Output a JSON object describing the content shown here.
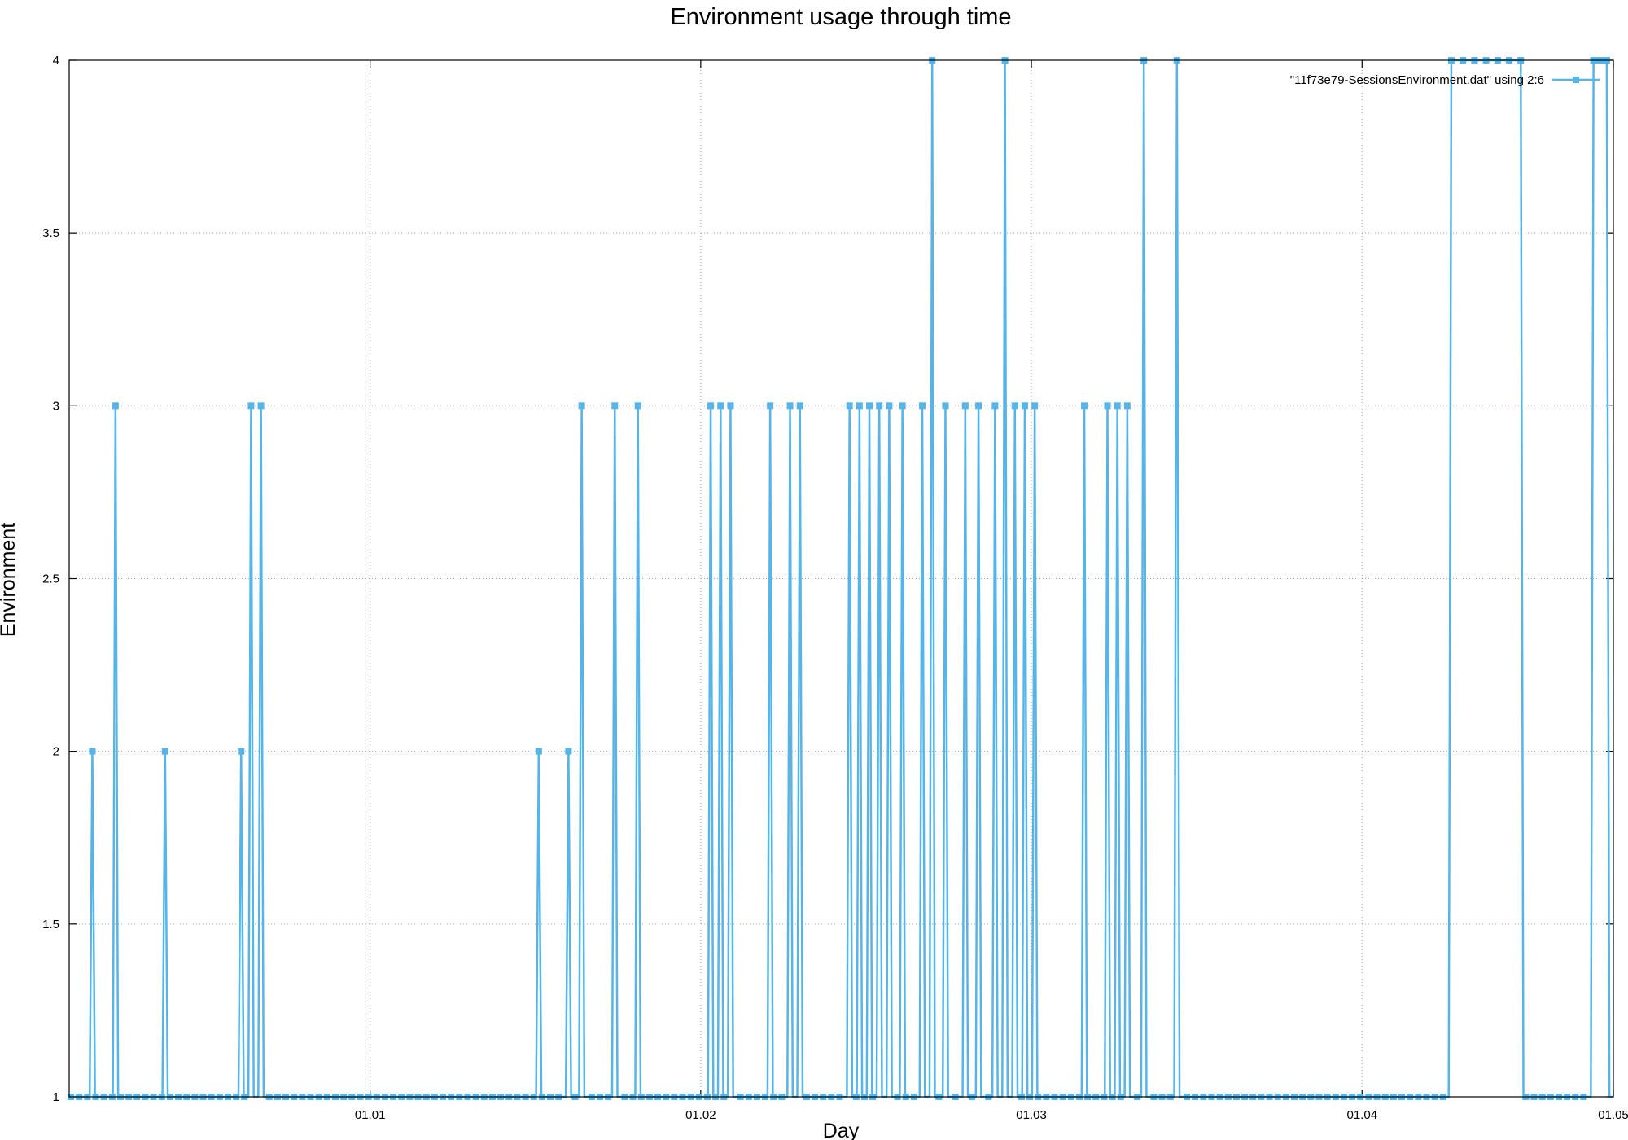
{
  "chart_data": {
    "type": "line",
    "title": "Environment usage through time",
    "xlabel": "Day",
    "ylabel": "Environment",
    "xlim": [
      0.09,
      4.76
    ],
    "ylim": [
      1,
      4
    ],
    "grid": true,
    "legend_position": "top-right",
    "line_color": "#56b4e9",
    "x_ticks": [
      {
        "value": 1,
        "label": "01.01"
      },
      {
        "value": 2,
        "label": "01.02"
      },
      {
        "value": 3,
        "label": "01.03"
      },
      {
        "value": 4,
        "label": "01.04"
      },
      {
        "value": 4.76,
        "label": "01.05"
      }
    ],
    "y_ticks": [
      {
        "value": 1,
        "label": "1"
      },
      {
        "value": 1.5,
        "label": "1.5"
      },
      {
        "value": 2,
        "label": "2"
      },
      {
        "value": 2.5,
        "label": "2.5"
      },
      {
        "value": 3,
        "label": "3"
      },
      {
        "value": 3.5,
        "label": "3.5"
      },
      {
        "value": 4,
        "label": "4"
      }
    ],
    "series": [
      {
        "name": "\"11f73e79-SessionsEnvironment.dat\" using 2:6",
        "peaks": [
          [
            0.16,
            2
          ],
          [
            0.23,
            3
          ],
          [
            0.38,
            2
          ],
          [
            0.61,
            2
          ],
          [
            0.64,
            3
          ],
          [
            0.67,
            3
          ],
          [
            1.51,
            2
          ],
          [
            1.6,
            2
          ],
          [
            1.64,
            3
          ],
          [
            1.74,
            3
          ],
          [
            1.81,
            3
          ],
          [
            2.03,
            3
          ],
          [
            2.06,
            3
          ],
          [
            2.09,
            3
          ],
          [
            2.21,
            3
          ],
          [
            2.27,
            3
          ],
          [
            2.3,
            3
          ],
          [
            2.45,
            3
          ],
          [
            2.48,
            3
          ],
          [
            2.51,
            3
          ],
          [
            2.54,
            3
          ],
          [
            2.57,
            3
          ],
          [
            2.61,
            3
          ],
          [
            2.67,
            3
          ],
          [
            2.7,
            4
          ],
          [
            2.74,
            3
          ],
          [
            2.8,
            3
          ],
          [
            2.84,
            3
          ],
          [
            2.89,
            3
          ],
          [
            2.92,
            4
          ],
          [
            2.95,
            3
          ],
          [
            2.98,
            3
          ],
          [
            3.01,
            3
          ],
          [
            3.16,
            3
          ],
          [
            3.23,
            3
          ],
          [
            3.26,
            3
          ],
          [
            3.29,
            3
          ],
          [
            3.34,
            4
          ],
          [
            3.44,
            4
          ]
        ],
        "plateaus": [
          [
            4.27,
            4.48,
            4
          ],
          [
            4.7,
            4.74,
            4
          ]
        ]
      }
    ]
  }
}
